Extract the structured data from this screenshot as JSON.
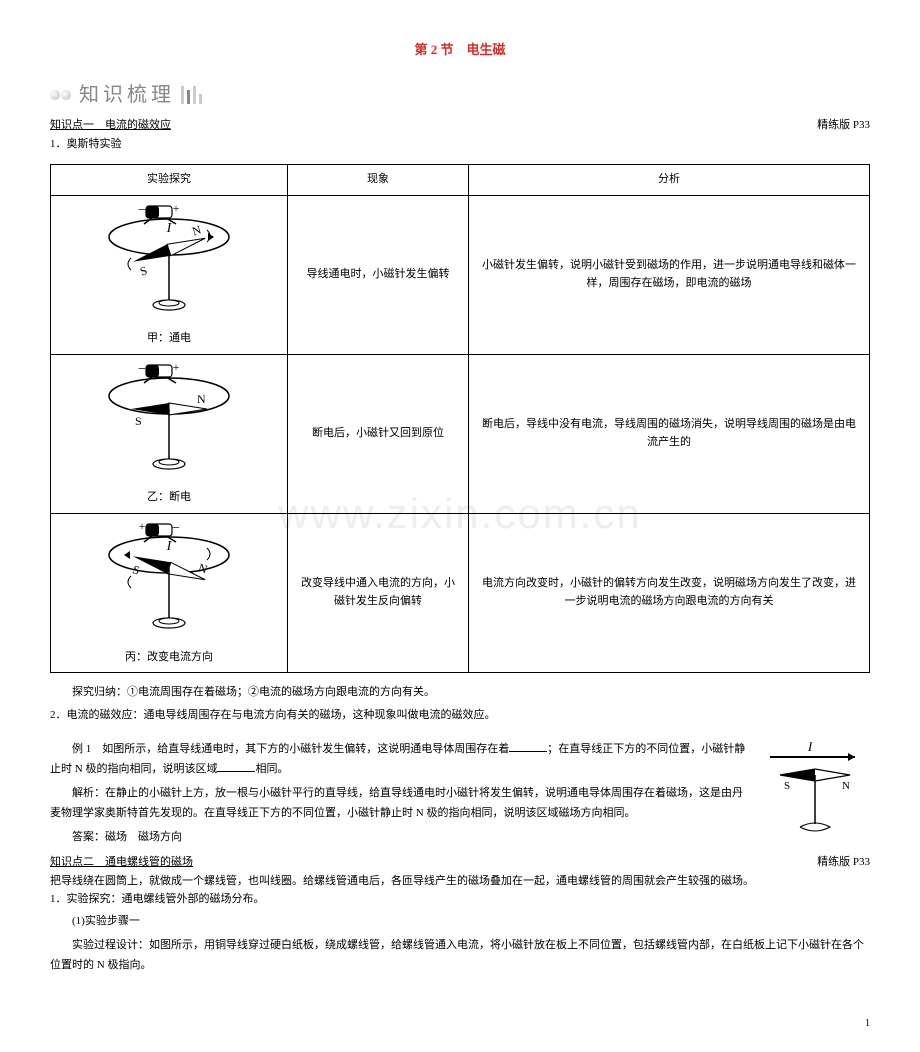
{
  "title": "第 2 节　电生磁",
  "section_header": "知识梳理",
  "kp1": {
    "title": "知识点一　电流的磁效应",
    "ref": "精练版 P33",
    "sub1": "1．奥斯特实验"
  },
  "table": {
    "headers": [
      "实验探究",
      "现象",
      "分析"
    ],
    "rows": [
      {
        "caption": "甲：通电",
        "current_on": true,
        "reversed": false,
        "phenomenon": "导线通电时，小磁针发生偏转",
        "analysis": "小磁针发生偏转，说明小磁针受到磁场的作用，进一步说明通电导线和磁体一样，周围存在磁场，即电流的磁场"
      },
      {
        "caption": "乙：断电",
        "current_on": false,
        "reversed": false,
        "phenomenon": "断电后，小磁针又回到原位",
        "analysis": "断电后，导线中没有电流，导线周围的磁场消失，说明导线周围的磁场是由电流产生的"
      },
      {
        "caption": "丙：改变电流方向",
        "current_on": true,
        "reversed": true,
        "phenomenon": "改变导线中通入电流的方向，小磁针发生反向偏转",
        "analysis": "电流方向改变时，小磁针的偏转方向发生改变，说明磁场方向发生了改变，进一步说明电流的磁场方向跟电流的方向有关"
      }
    ],
    "summary": "探究归纳：①电流周围存在着磁场；②电流的磁场方向跟电流的方向有关。",
    "def": "2．电流的磁效应：通电导线周围存在与电流方向有关的磁场，这种现象叫做电流的磁效应。"
  },
  "example1": {
    "prompt_a": "例 1　如图所示，给直导线通电时，其下方的小磁针发生偏转，这说明通电导体周围存在着",
    "prompt_b": "；在直导线正下方的不同位置，小磁针静止时 N 极的指向相同，说明该区域",
    "prompt_c": "相同。",
    "explain": "解析：在静止的小磁针上方，放一根与小磁针平行的直导线，给直导线通电时小磁针将发生偏转，说明通电导体周围存在着磁场，这是由丹麦物理学家奥斯特首先发现的。在直导线正下方的不同位置，小磁针静止时 N 极的指向相同，说明该区域磁场方向相同。",
    "answer": "答案：磁场　磁场方向"
  },
  "kp2": {
    "title": "知识点二　通电螺线管的磁场",
    "ref": "精练版 P33",
    "intro": "把导线绕在圆筒上，就做成一个螺线管，也叫线圈。给螺线管通电后，各匝导线产生的磁场叠加在一起，通电螺线管的周围就会产生较强的磁场。",
    "sub1": "1．实验探究：通电螺线管外部的磁场分布。",
    "step_label": "(1)实验步骤一",
    "step_text": "实验过程设计：如图所示，用铜导线穿过硬白纸板，绕成螺线管，给螺线管通入电流，将小磁针放在板上不同位置，包括螺线管内部，在白纸板上记下小磁针在各个位置时的 N 极指向。"
  },
  "watermark": "www.zixin.com.cn",
  "pagenum": "1",
  "colors": {
    "title": "#d4302a",
    "header_text": "#888888",
    "border": "#000000",
    "watermark": "#eeeeee"
  }
}
